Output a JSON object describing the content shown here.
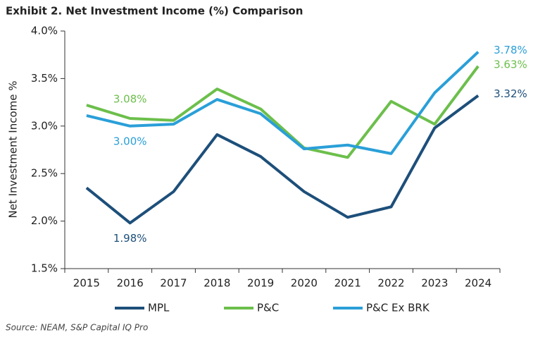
{
  "chart_data": {
    "type": "line",
    "title": "Exhibit 2. Net Investment Income (%) Comparison",
    "y_label": "Net Investment Income %",
    "source": "Source: NEAM, S&P Capital IQ Pro",
    "categories": [
      "2015",
      "2016",
      "2017",
      "2018",
      "2019",
      "2020",
      "2021",
      "2022",
      "2023",
      "2024"
    ],
    "series": [
      {
        "name": "MPL",
        "color": "#1d4f7a",
        "values": [
          2.35,
          1.98,
          2.31,
          2.91,
          2.68,
          2.31,
          2.04,
          2.15,
          2.98,
          3.32
        ],
        "value_labels": [
          null,
          "1.98%",
          null,
          null,
          null,
          null,
          null,
          null,
          null,
          "3.32%"
        ]
      },
      {
        "name": "P&C",
        "color": "#6cbf4b",
        "values": [
          3.22,
          3.08,
          3.06,
          3.39,
          3.18,
          2.77,
          2.67,
          3.26,
          3.02,
          3.63
        ],
        "value_labels": [
          null,
          "3.08%",
          null,
          null,
          null,
          null,
          null,
          null,
          null,
          "3.63%"
        ]
      },
      {
        "name": "P&C Ex BRK",
        "color": "#2a9fd8",
        "values": [
          3.11,
          3.0,
          3.02,
          3.28,
          3.13,
          2.76,
          2.8,
          2.71,
          3.35,
          3.78
        ],
        "value_labels": [
          null,
          "3.00%",
          null,
          null,
          null,
          null,
          null,
          null,
          null,
          "3.78%"
        ]
      }
    ],
    "ylim": [
      1.5,
      4.0
    ],
    "yticks": [
      {
        "value": 1.5,
        "label": "1.5%"
      },
      {
        "value": 2.0,
        "label": "2.0%"
      },
      {
        "value": 2.5,
        "label": "2.5%"
      },
      {
        "value": 3.0,
        "label": "3.0%"
      },
      {
        "value": 3.5,
        "label": "3.5%"
      },
      {
        "value": 4.0,
        "label": "4.0%"
      }
    ],
    "grid": false
  }
}
